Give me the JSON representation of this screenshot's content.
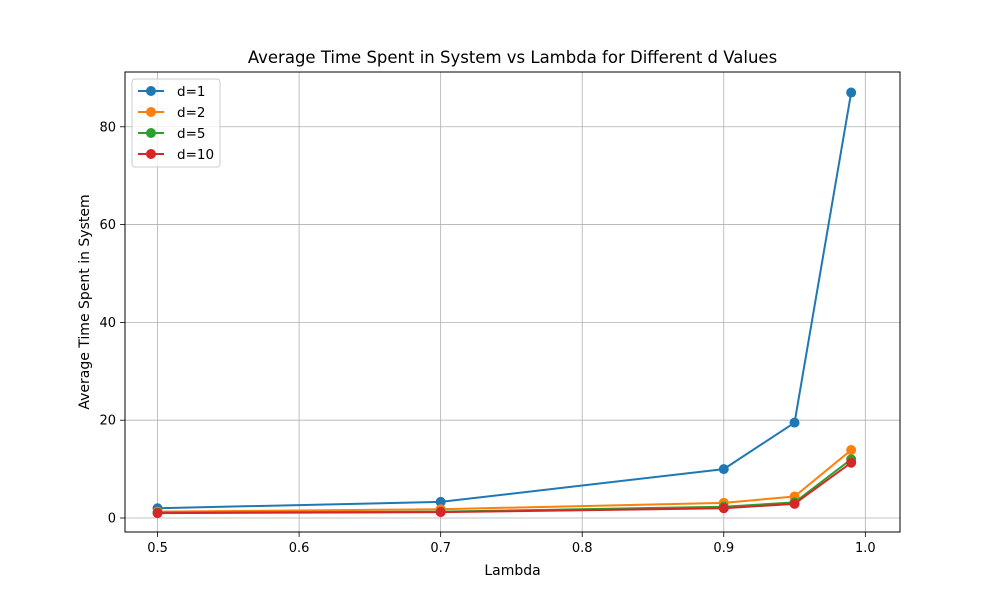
{
  "chart_data": {
    "type": "line",
    "title": "Average Time Spent in System vs Lambda for Different d Values",
    "xlabel": "Lambda",
    "ylabel": "Average Time Spent in System",
    "xlim": [
      0.477,
      1.0245
    ],
    "ylim": [
      -2.86,
      91.2
    ],
    "xticks": [
      0.5,
      0.6,
      0.7,
      0.8,
      0.9,
      1.0
    ],
    "xtick_labels": [
      "0.5",
      "0.6",
      "0.7",
      "0.8",
      "0.9",
      "1.0"
    ],
    "yticks": [
      0,
      20,
      40,
      60,
      80
    ],
    "ytick_labels": [
      "0",
      "20",
      "40",
      "60",
      "80"
    ],
    "grid": true,
    "legend_position": "top-left",
    "x": [
      0.5,
      0.7,
      0.9,
      0.95,
      0.99
    ],
    "series": [
      {
        "name": "d=1",
        "color": "#1f77b4",
        "values": [
          2.0,
          3.3,
          10.0,
          19.5,
          87.0
        ]
      },
      {
        "name": "d=2",
        "color": "#ff7f0e",
        "values": [
          1.3,
          1.8,
          3.1,
          4.4,
          13.9
        ]
      },
      {
        "name": "d=5",
        "color": "#2ca02c",
        "values": [
          1.1,
          1.3,
          2.3,
          3.2,
          12.0
        ]
      },
      {
        "name": "d=10",
        "color": "#d62728",
        "values": [
          1.0,
          1.2,
          2.0,
          2.9,
          11.3
        ]
      }
    ]
  }
}
